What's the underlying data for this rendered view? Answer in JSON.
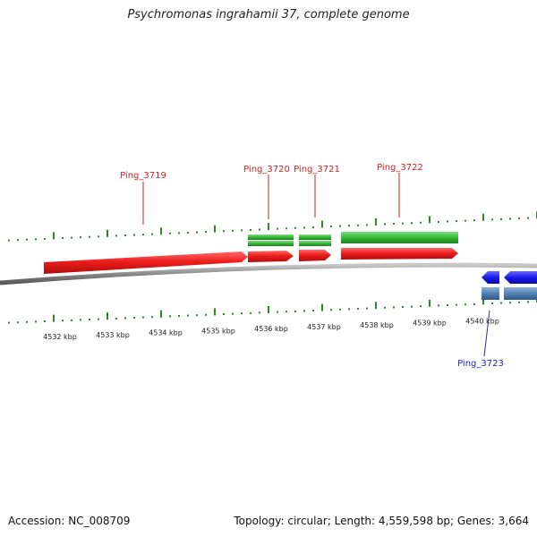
{
  "title": "Psychromonas ingrahamii 37, complete genome",
  "footer": {
    "accession": "Accession: NC_008709",
    "summary": "Topology: circular; Length: 4,559,598 bp; Genes: 3,664"
  },
  "scale_ticks": [
    "4532 kbp",
    "4533 kbp",
    "4534 kbp",
    "4535 kbp",
    "4536 kbp",
    "4537 kbp",
    "4538 kbp",
    "4539 kbp",
    "4540 kbp"
  ],
  "genes": [
    {
      "label": "Ping_3719",
      "strand": "forward",
      "color": "#e02020"
    },
    {
      "label": "Ping_3720",
      "strand": "forward",
      "color": "#e02020"
    },
    {
      "label": "Ping_3721",
      "strand": "forward",
      "color": "#e02020"
    },
    {
      "label": "Ping_3722",
      "strand": "forward",
      "color": "#e02020"
    },
    {
      "label": "Ping_3723",
      "strand": "reverse",
      "color": "#1010e0"
    }
  ],
  "colors": {
    "forward_gene": "#e02020",
    "reverse_gene": "#1010e0",
    "forward_feature": "#3cc43c",
    "reverse_feature": "#4a7ab0",
    "tick": "#2a8a2a",
    "backbone": "#808080"
  }
}
